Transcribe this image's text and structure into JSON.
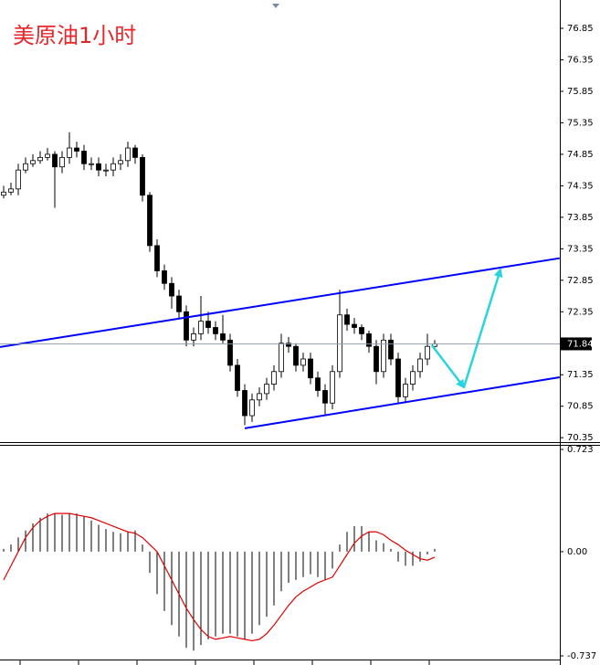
{
  "chart_data": [
    {
      "type": "candlestick",
      "title": "美原油1小时",
      "title_color": "#e8262a",
      "xlim": [
        -0.5,
        76.125
      ],
      "ylim": [
        70.28,
        77.3
      ],
      "yticks": [
        76.85,
        76.35,
        75.85,
        75.35,
        74.85,
        74.35,
        73.85,
        73.35,
        72.85,
        72.35,
        71.35,
        70.85,
        70.35
      ],
      "up_color": "#ffffff",
      "down_color": "#000000",
      "open": [
        74.2,
        74.25,
        74.3,
        74.6,
        74.7,
        74.75,
        74.8,
        74.85,
        74.65,
        74.8,
        74.95,
        74.9,
        74.7,
        74.7,
        74.6,
        74.6,
        74.7,
        74.75,
        74.95,
        74.8,
        74.2,
        73.4,
        73.0,
        72.8,
        72.6,
        72.35,
        71.9,
        72.0,
        72.2,
        72.1,
        72.0,
        71.9,
        71.5,
        71.1,
        70.7,
        70.95,
        71.05,
        71.2,
        71.4,
        71.85,
        71.8,
        71.5,
        71.6,
        71.3,
        71.1,
        70.9,
        71.4,
        72.3,
        72.15,
        72.1,
        72.0,
        71.8,
        71.4,
        71.9,
        71.6,
        71.0,
        71.2,
        71.4,
        71.6,
        71.8
      ],
      "high": [
        74.35,
        74.4,
        74.7,
        74.8,
        74.85,
        74.9,
        74.95,
        74.9,
        74.9,
        75.2,
        75.05,
        75.0,
        74.8,
        74.8,
        74.7,
        74.8,
        74.85,
        75.05,
        75.0,
        74.85,
        74.25,
        73.5,
        73.1,
        72.9,
        72.7,
        72.45,
        72.1,
        72.6,
        72.35,
        72.2,
        72.3,
        72.0,
        71.6,
        71.2,
        71.05,
        71.15,
        71.3,
        71.5,
        72.0,
        71.95,
        71.85,
        71.7,
        71.7,
        71.4,
        71.2,
        71.5,
        72.7,
        72.4,
        72.25,
        72.15,
        72.05,
        71.9,
        72.0,
        72.0,
        71.7,
        71.3,
        71.5,
        71.7,
        72.0,
        71.9
      ],
      "low": [
        74.15,
        74.2,
        74.2,
        74.55,
        74.65,
        74.7,
        74.75,
        74.0,
        74.55,
        74.7,
        74.8,
        74.6,
        74.6,
        74.5,
        74.5,
        74.5,
        74.6,
        74.65,
        74.7,
        74.1,
        73.3,
        72.9,
        72.7,
        72.4,
        72.25,
        71.8,
        71.8,
        71.9,
        72.0,
        71.9,
        71.85,
        71.4,
        71.0,
        70.55,
        70.6,
        70.85,
        70.95,
        71.1,
        71.3,
        71.7,
        71.4,
        71.4,
        71.2,
        71.0,
        70.7,
        70.8,
        71.3,
        72.05,
        72.0,
        71.9,
        71.7,
        71.2,
        71.3,
        71.5,
        70.9,
        70.9,
        71.1,
        71.3,
        71.5,
        71.75
      ],
      "close": [
        74.25,
        74.3,
        74.6,
        74.7,
        74.75,
        74.8,
        74.85,
        74.65,
        74.8,
        74.95,
        74.9,
        74.7,
        74.7,
        74.6,
        74.6,
        74.7,
        74.75,
        74.95,
        74.8,
        74.2,
        73.4,
        73.0,
        72.8,
        72.6,
        72.35,
        71.9,
        72.0,
        72.2,
        72.1,
        72.0,
        71.9,
        71.5,
        71.1,
        70.7,
        70.95,
        71.05,
        71.2,
        71.4,
        71.85,
        71.8,
        71.5,
        71.6,
        71.3,
        71.1,
        70.9,
        71.4,
        72.3,
        72.15,
        72.1,
        72.0,
        71.8,
        71.4,
        71.9,
        71.6,
        71.0,
        71.2,
        71.4,
        71.6,
        71.8,
        71.84
      ],
      "last_price": 71.84,
      "trendlines": [
        {
          "color": "#0000ff",
          "x": [
            -0.5,
            76.1
          ],
          "y": [
            71.79,
            73.2
          ]
        },
        {
          "color": "#0000ff",
          "x": [
            33,
            76.1
          ],
          "y": [
            70.5,
            71.31
          ]
        }
      ],
      "arrows": {
        "color": "#29d4e0",
        "x": [
          58.6,
          63,
          68
        ],
        "y": [
          71.82,
          71.15,
          73.02
        ]
      }
    },
    {
      "type": "macd",
      "xlim": [
        -0.5,
        76.125
      ],
      "ylim": [
        -0.737,
        0.723
      ],
      "yticks": [
        0.723,
        {
          "value": 0,
          "label": "0.00"
        },
        -0.737
      ],
      "histogram": {
        "color": "#000000",
        "values": [
          0.02,
          0.05,
          0.1,
          0.15,
          0.2,
          0.24,
          0.27,
          0.27,
          0.26,
          0.27,
          0.27,
          0.25,
          0.22,
          0.19,
          0.16,
          0.14,
          0.13,
          0.14,
          0.15,
          0.05,
          -0.15,
          -0.3,
          -0.42,
          -0.52,
          -0.6,
          -0.68,
          -0.7,
          -0.66,
          -0.62,
          -0.6,
          -0.58,
          -0.58,
          -0.6,
          -0.62,
          -0.58,
          -0.52,
          -0.46,
          -0.38,
          -0.28,
          -0.22,
          -0.2,
          -0.18,
          -0.16,
          -0.18,
          -0.2,
          -0.12,
          0.05,
          0.14,
          0.18,
          0.18,
          0.14,
          0.08,
          0.06,
          0.02,
          -0.07,
          -0.1,
          -0.1,
          -0.07,
          -0.02,
          0.02
        ]
      },
      "signal": {
        "color": "#e00000",
        "values": [
          -0.2,
          -0.1,
          0.0,
          0.1,
          0.17,
          0.22,
          0.25,
          0.27,
          0.27,
          0.27,
          0.26,
          0.25,
          0.24,
          0.22,
          0.2,
          0.18,
          0.16,
          0.14,
          0.13,
          0.1,
          0.05,
          0.0,
          -0.1,
          -0.2,
          -0.3,
          -0.4,
          -0.48,
          -0.55,
          -0.6,
          -0.62,
          -0.61,
          -0.6,
          -0.61,
          -0.62,
          -0.63,
          -0.62,
          -0.58,
          -0.52,
          -0.45,
          -0.38,
          -0.32,
          -0.28,
          -0.25,
          -0.22,
          -0.2,
          -0.18,
          -0.1,
          -0.02,
          0.06,
          0.11,
          0.14,
          0.14,
          0.12,
          0.08,
          0.05,
          0.01,
          -0.02,
          -0.05,
          -0.06,
          -0.04
        ]
      }
    }
  ]
}
